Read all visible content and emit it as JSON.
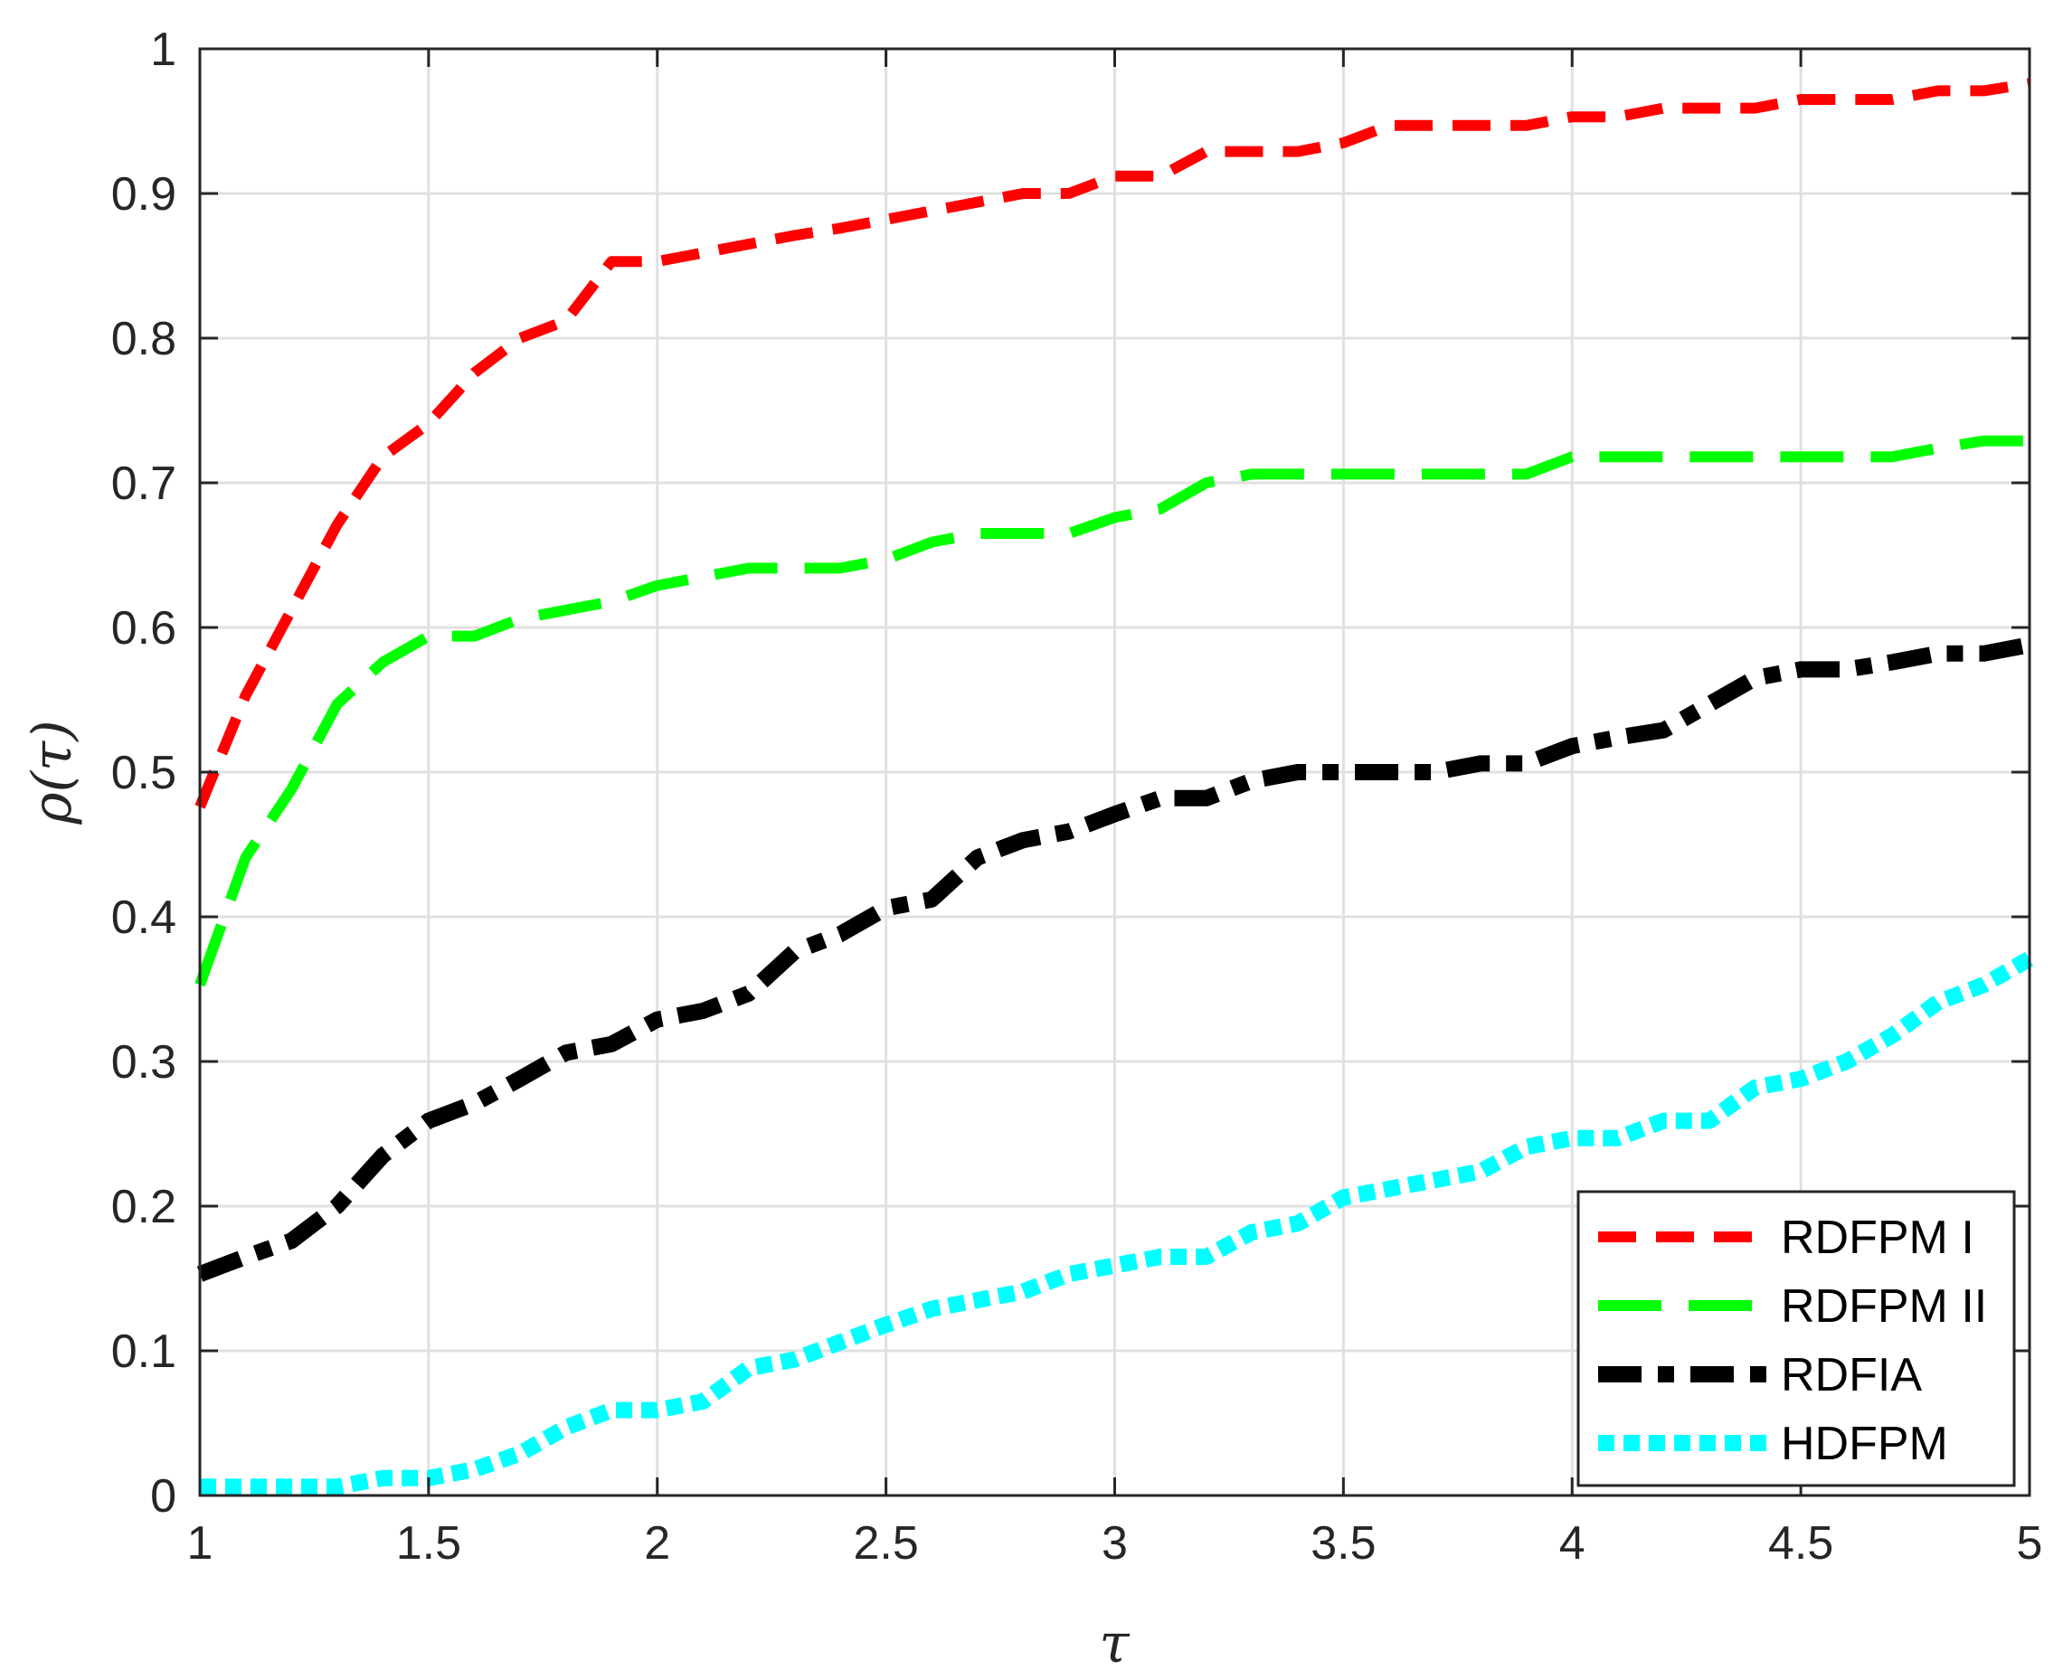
{
  "chart_data": {
    "type": "line",
    "xlabel": "τ",
    "ylabel": "ρ(τ)",
    "xlim": [
      1,
      5
    ],
    "ylim": [
      0,
      1
    ],
    "xticks": [
      "1",
      "1.5",
      "2",
      "2.5",
      "3",
      "3.5",
      "4",
      "4.5",
      "5"
    ],
    "yticks": [
      "0",
      "0.1",
      "0.2",
      "0.3",
      "0.4",
      "0.5",
      "0.6",
      "0.7",
      "0.8",
      "0.9",
      "1"
    ],
    "grid": true,
    "legend_position": "bottom-right",
    "x": [
      1.0,
      1.1,
      1.2,
      1.3,
      1.4,
      1.5,
      1.6,
      1.7,
      1.8,
      1.9,
      2.0,
      2.1,
      2.2,
      2.3,
      2.4,
      2.5,
      2.6,
      2.7,
      2.8,
      2.9,
      3.0,
      3.1,
      3.2,
      3.3,
      3.4,
      3.5,
      3.6,
      3.7,
      3.8,
      3.9,
      4.0,
      4.1,
      4.2,
      4.3,
      4.4,
      4.5,
      4.6,
      4.7,
      4.8,
      4.9,
      5.0
    ],
    "series": [
      {
        "name": "RDFPM I",
        "color": "#ff0000",
        "style": "dashed",
        "values": [
          0.476,
          0.553,
          0.612,
          0.671,
          0.718,
          0.741,
          0.776,
          0.8,
          0.812,
          0.853,
          0.853,
          0.859,
          0.865,
          0.871,
          0.876,
          0.882,
          0.888,
          0.894,
          0.9,
          0.9,
          0.912,
          0.912,
          0.929,
          0.929,
          0.929,
          0.935,
          0.947,
          0.947,
          0.947,
          0.947,
          0.953,
          0.953,
          0.959,
          0.959,
          0.959,
          0.965,
          0.965,
          0.965,
          0.971,
          0.971,
          0.976
        ]
      },
      {
        "name": "RDFPM II",
        "color": "#00ff00",
        "style": "long-dashed",
        "values": [
          0.353,
          0.441,
          0.488,
          0.547,
          0.576,
          0.594,
          0.594,
          0.606,
          0.612,
          0.618,
          0.629,
          0.635,
          0.641,
          0.641,
          0.641,
          0.647,
          0.659,
          0.665,
          0.665,
          0.665,
          0.676,
          0.682,
          0.7,
          0.706,
          0.706,
          0.706,
          0.706,
          0.706,
          0.706,
          0.706,
          0.718,
          0.718,
          0.718,
          0.718,
          0.718,
          0.718,
          0.718,
          0.718,
          0.724,
          0.729,
          0.729
        ]
      },
      {
        "name": "RDFIA",
        "color": "#000000",
        "style": "dash-dot",
        "values": [
          0.153,
          0.165,
          0.176,
          0.2,
          0.235,
          0.259,
          0.271,
          0.288,
          0.306,
          0.312,
          0.329,
          0.335,
          0.347,
          0.376,
          0.388,
          0.406,
          0.412,
          0.441,
          0.453,
          0.459,
          0.471,
          0.482,
          0.482,
          0.494,
          0.5,
          0.5,
          0.5,
          0.5,
          0.506,
          0.506,
          0.518,
          0.524,
          0.529,
          0.547,
          0.565,
          0.571,
          0.571,
          0.576,
          0.582,
          0.582,
          0.588
        ]
      },
      {
        "name": "HDFPM",
        "color": "#00ffff",
        "style": "dotted",
        "values": [
          0.006,
          0.006,
          0.006,
          0.006,
          0.012,
          0.012,
          0.018,
          0.029,
          0.047,
          0.059,
          0.059,
          0.065,
          0.088,
          0.094,
          0.106,
          0.118,
          0.129,
          0.135,
          0.141,
          0.153,
          0.159,
          0.165,
          0.165,
          0.182,
          0.188,
          0.206,
          0.212,
          0.218,
          0.224,
          0.241,
          0.247,
          0.247,
          0.259,
          0.259,
          0.282,
          0.288,
          0.3,
          0.318,
          0.341,
          0.353,
          0.371
        ]
      }
    ]
  }
}
